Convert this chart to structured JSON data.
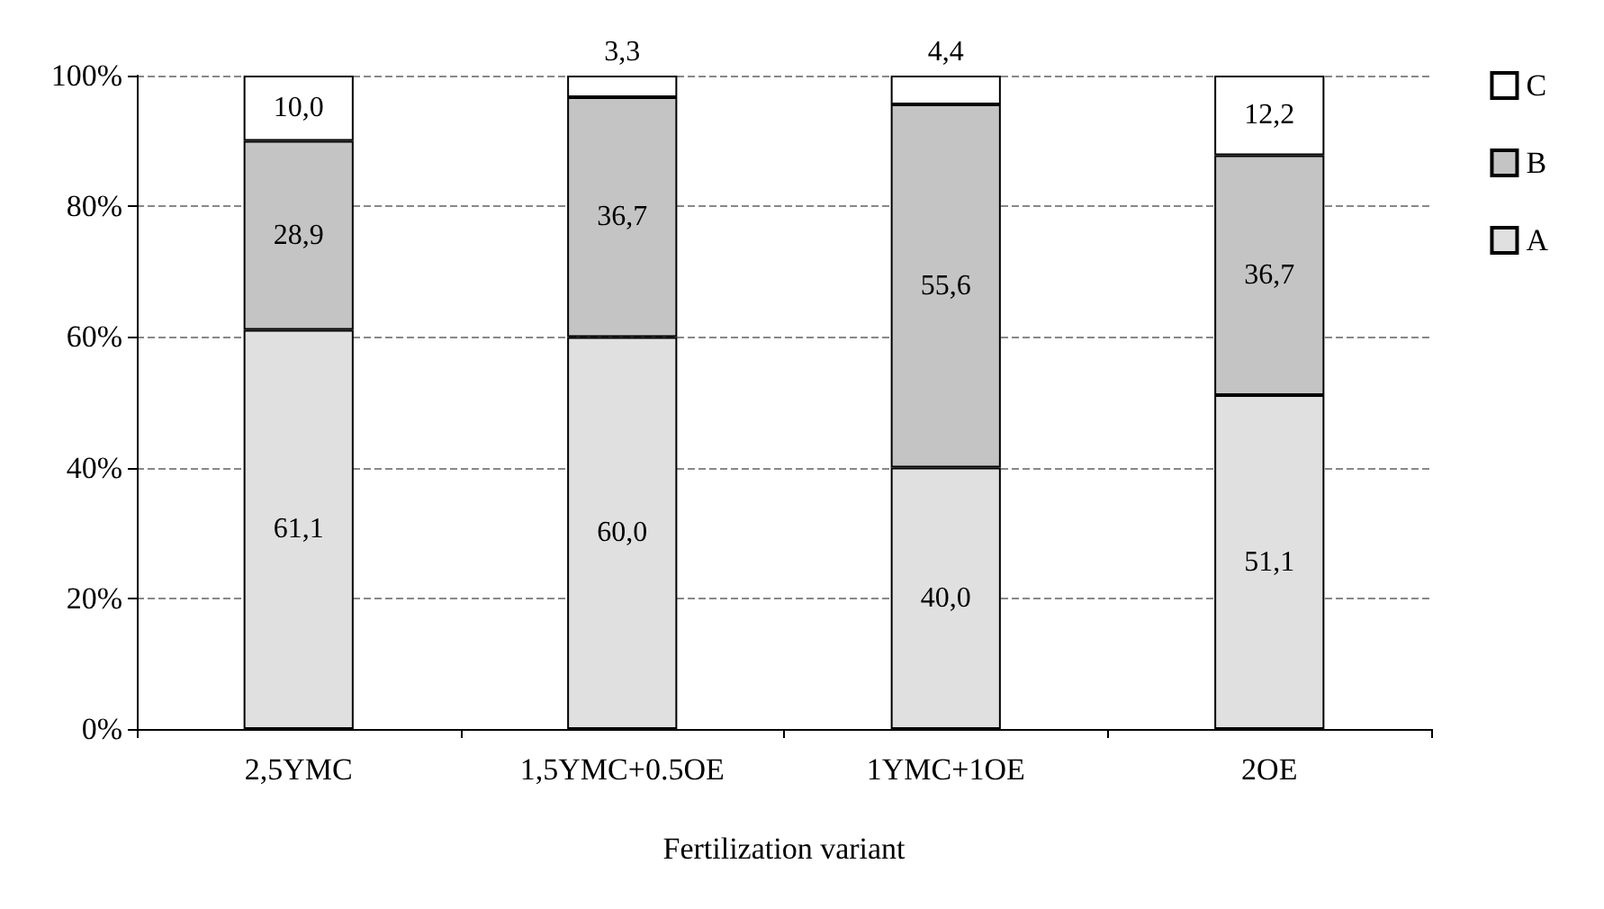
{
  "chart_data": {
    "type": "bar",
    "stacked": true,
    "xlabel": "Fertilization variant",
    "categories": [
      "2,5YMC",
      "1,5YMC+0.5OE",
      "1YMC+1OE",
      "2OE"
    ],
    "series": [
      {
        "name": "A",
        "color": "#e0e0e0",
        "values": [
          61.1,
          60.0,
          40.0,
          51.1
        ],
        "value_labels": [
          "61,1",
          "60,0",
          "40,0",
          "51,1"
        ]
      },
      {
        "name": "B",
        "color": "#c4c4c4",
        "values": [
          28.9,
          36.7,
          55.6,
          36.7
        ],
        "value_labels": [
          "28,9",
          "36,7",
          "55,6",
          "36,7"
        ]
      },
      {
        "name": "C",
        "color": "#ffffff",
        "values": [
          10.0,
          3.3,
          4.4,
          12.2
        ],
        "value_labels": [
          "10,0",
          "3,3",
          "4,4",
          "12,2"
        ]
      }
    ],
    "ylim": [
      0,
      100
    ],
    "yticks": [
      {
        "value": 0,
        "label": "0%"
      },
      {
        "value": 20,
        "label": "20%"
      },
      {
        "value": 40,
        "label": "40%"
      },
      {
        "value": 60,
        "label": "60%"
      },
      {
        "value": 80,
        "label": "80%"
      },
      {
        "value": 100,
        "label": "100%"
      }
    ],
    "grid": "y",
    "legend": "right"
  }
}
